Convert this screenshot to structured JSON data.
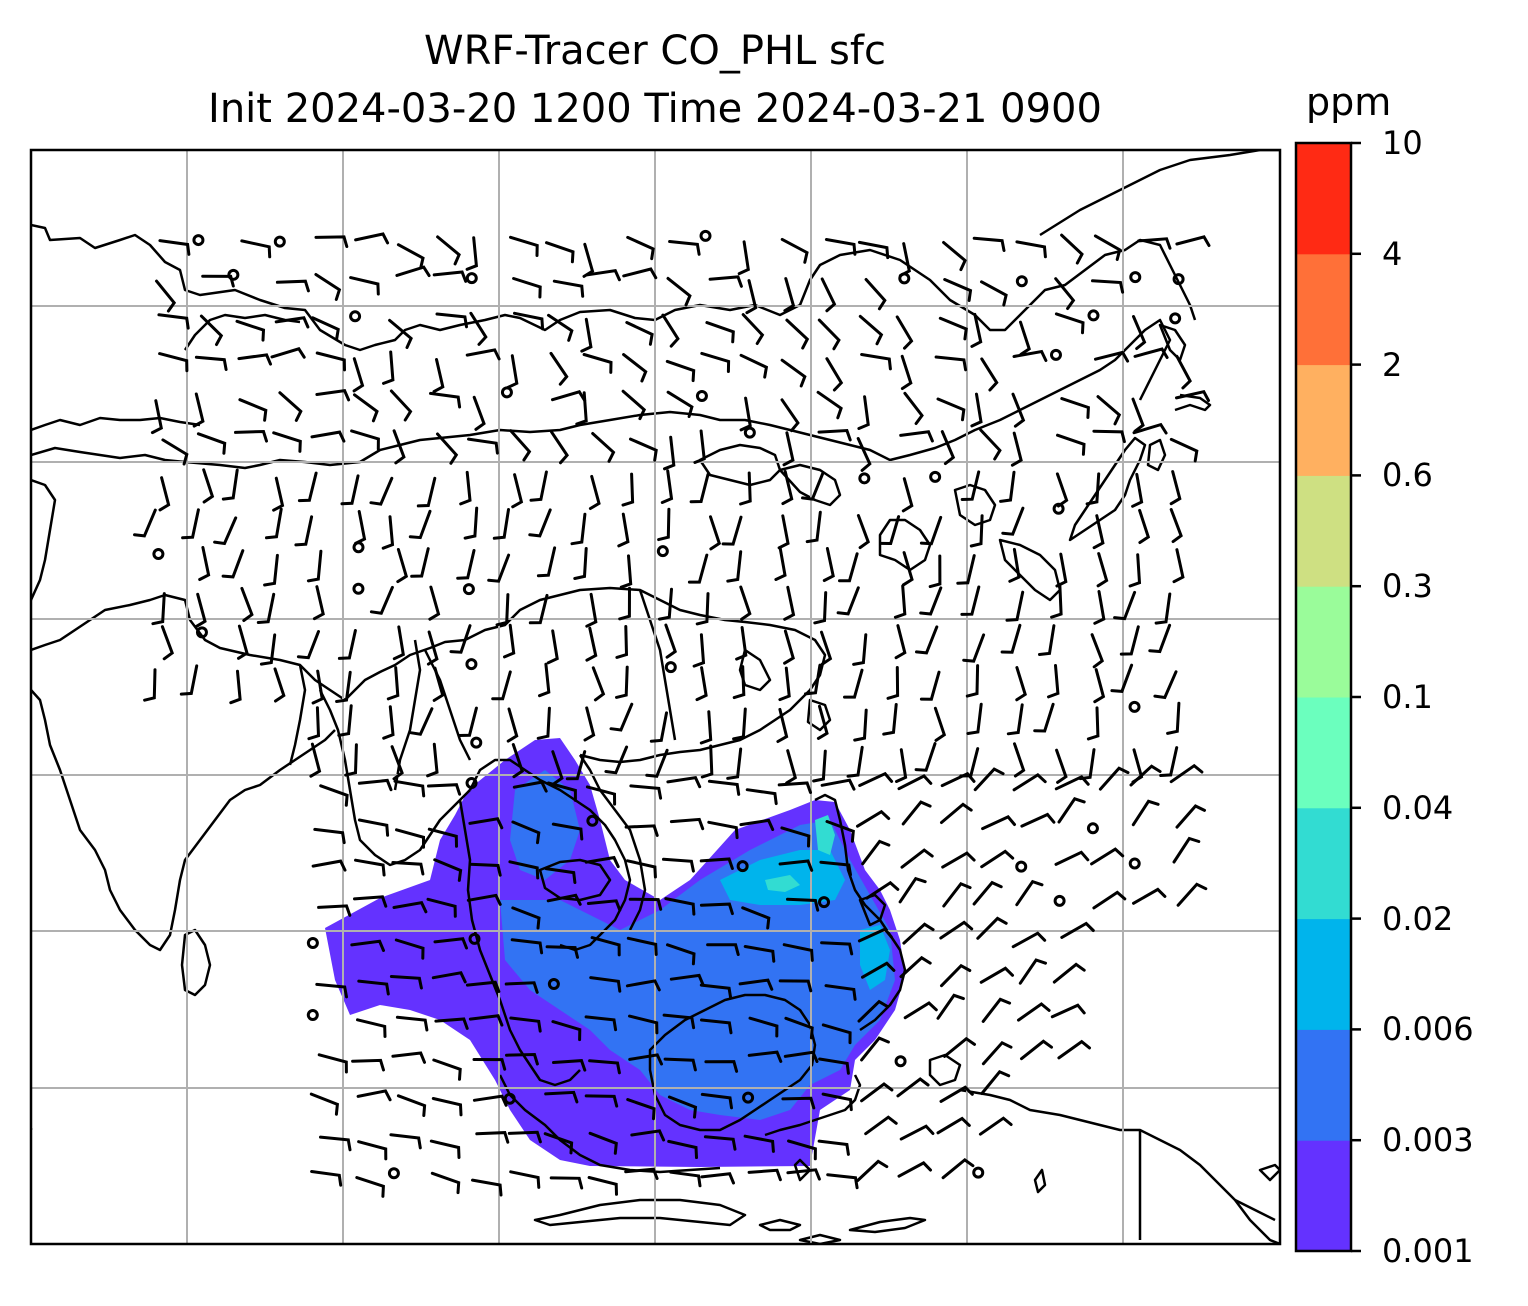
{
  "title": {
    "line1": "WRF-Tracer CO_PHL sfc",
    "line2": "Init 2024-03-20 1200 Time 2024-03-21 0900"
  },
  "colorbar": {
    "unit": "ppm",
    "levels": [
      "0.001",
      "0.003",
      "0.006",
      "0.02",
      "0.04",
      "0.1",
      "0.3",
      "0.6",
      "2",
      "4",
      "10"
    ],
    "colors": [
      "#6432ff",
      "#3273f3",
      "#00b4ec",
      "#32dcd2",
      "#6bffbe",
      "#9afc9a",
      "#cee082",
      "#ffb060",
      "#ff7038",
      "#ff2a14"
    ]
  },
  "map": {
    "gridlines": true,
    "field": "CO tracer concentration",
    "wind_barbs": true
  }
}
